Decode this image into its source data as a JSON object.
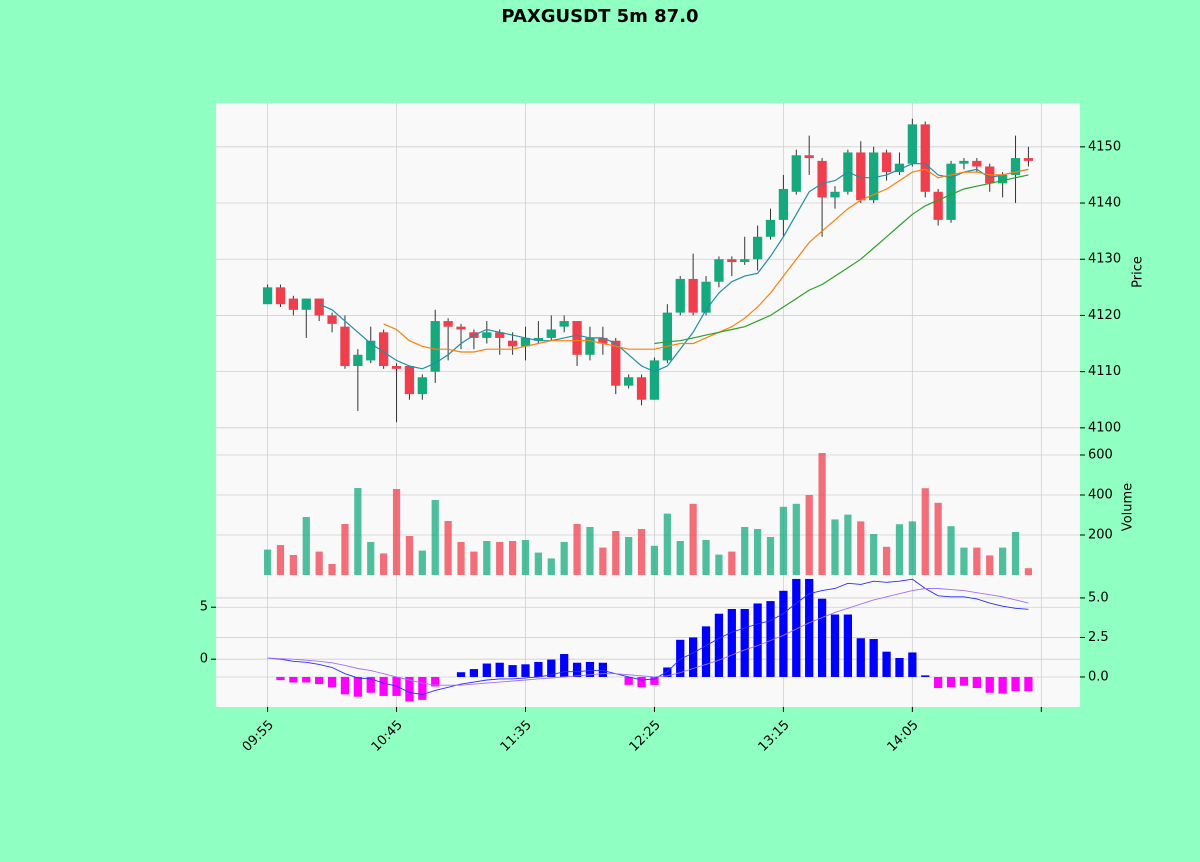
{
  "chart_data": {
    "type": "candlestick",
    "title": "PAXGUSDT 5m 87.0",
    "xlim": [
      -4,
      63
    ],
    "xticks": [
      {
        "value": 0,
        "label": "09:55"
      },
      {
        "value": 10,
        "label": "10:45"
      },
      {
        "value": 20,
        "label": "11:35"
      },
      {
        "value": 30,
        "label": "12:25"
      },
      {
        "value": 40,
        "label": "13:15"
      },
      {
        "value": 50,
        "label": "14:05"
      },
      {
        "value": 60,
        "label": null
      }
    ],
    "grid": true,
    "price": {
      "ylabel": "Price",
      "ylim": [
        4095.7,
        4157.8
      ],
      "yticks": [
        4100,
        4110,
        4120,
        4130,
        4140,
        4150
      ],
      "up_color": "#16a97d",
      "down_color": "#ef3f4d",
      "open": [
        4122,
        4125,
        4123,
        4121,
        4123,
        4120,
        4118,
        4111,
        4112,
        4117,
        4111,
        4111,
        4106,
        4110,
        4119,
        4118,
        4117,
        4116,
        4117,
        4115.5,
        4114.5,
        4115.5,
        4116,
        4118,
        4119,
        4113,
        4116,
        4115.5,
        4107.5,
        4109,
        4105,
        4112,
        4120.5,
        4126.5,
        4120.5,
        4126,
        4130,
        4129.5,
        4130,
        4134,
        4137,
        4142,
        4148.5,
        4147.5,
        4141,
        4142,
        4149,
        4140.5,
        4149,
        4145.5,
        4147,
        4154,
        4142,
        4137,
        4147,
        4147.5,
        4146.5,
        4143.5,
        4145,
        4148
      ],
      "high": [
        4125.5,
        4125.5,
        4123.5,
        4123,
        4123,
        4120.5,
        4120,
        4114,
        4118,
        4117.5,
        4111.5,
        4111,
        4109.5,
        4121,
        4119.5,
        4118.5,
        4117.5,
        4119,
        4117.5,
        4117,
        4118,
        4119,
        4120,
        4120,
        4119,
        4118,
        4118,
        4116,
        4109.5,
        4109.5,
        4112.5,
        4122,
        4127,
        4131,
        4127,
        4130.5,
        4130.5,
        4134,
        4136,
        4139,
        4145,
        4149.5,
        4152,
        4148,
        4143,
        4149.5,
        4151,
        4150,
        4149.5,
        4149,
        4155,
        4154.5,
        4142.5,
        4147.5,
        4148,
        4148,
        4147,
        4145.5,
        4152,
        4150
      ],
      "low": [
        4122,
        4121.5,
        4120,
        4116,
        4119,
        4117,
        4110.5,
        4103,
        4111.5,
        4110.5,
        4101,
        4105,
        4105,
        4108,
        4112,
        4114,
        4114,
        4115,
        4113,
        4113,
        4112,
        4115,
        4115.5,
        4117,
        4111,
        4112,
        4113,
        4106,
        4107,
        4104,
        4105,
        4111.5,
        4120,
        4120,
        4120,
        4125,
        4127,
        4129,
        4128,
        4133.5,
        4134,
        4141.5,
        4145,
        4134,
        4139,
        4141.5,
        4140,
        4140,
        4144,
        4145,
        4146.5,
        4141,
        4136,
        4136.5,
        4146,
        4145.5,
        4142,
        4141,
        4140,
        4146.5
      ],
      "close": [
        4125,
        4122,
        4121,
        4123,
        4120,
        4118.5,
        4111,
        4113,
        4115.5,
        4111,
        4110.5,
        4106,
        4109,
        4119,
        4118,
        4117.5,
        4116,
        4117,
        4116,
        4114.5,
        4116,
        4116,
        4117.5,
        4119,
        4113,
        4116,
        4115,
        4107.5,
        4109,
        4105,
        4112,
        4120.5,
        4126.5,
        4120.5,
        4126,
        4130,
        4129.5,
        4130,
        4134,
        4137,
        4142.5,
        4148.5,
        4148,
        4141,
        4142,
        4149,
        4140.5,
        4149,
        4145.5,
        4147,
        4154,
        4142,
        4137,
        4147,
        4147.5,
        4146.5,
        4143.5,
        4145,
        4148,
        4147.5
      ],
      "ma": [
        {
          "color": "#1f8fa6",
          "values": [
            null,
            null,
            null,
            null,
            4122,
            4121,
            4119,
            4117,
            4115,
            4113.5,
            4112,
            4111,
            4110.5,
            4111.5,
            4113,
            4115,
            4116.5,
            4117.5,
            4117,
            4116.5,
            4116,
            4115.5,
            4115.5,
            4116,
            4116.5,
            4116,
            4116,
            4115,
            4113,
            4111,
            4110,
            4111,
            4114,
            4117,
            4121,
            4124,
            4126,
            4127,
            4127.5,
            4130.5,
            4134,
            4138,
            4142,
            4143.5,
            4144,
            4145.5,
            4144.5,
            4144.5,
            4145,
            4146,
            4147,
            4147,
            4145,
            4144.5,
            4145.5,
            4146,
            4144.5,
            4145,
            4145.5,
            4146
          ]
        },
        {
          "color": "#ff7f0e",
          "values": [
            null,
            null,
            null,
            null,
            null,
            null,
            null,
            null,
            null,
            4118.5,
            4117.5,
            4115.5,
            4114.5,
            4114,
            4114,
            4113.5,
            4113.5,
            4114,
            4114,
            4114,
            4114.5,
            4115,
            4115.5,
            4115.5,
            4115.5,
            4115.5,
            4115,
            4114.5,
            4114,
            4114,
            4114,
            4114.5,
            4115,
            4115,
            4116,
            4117,
            4118,
            4119.5,
            4121.5,
            4124,
            4127,
            4130,
            4133,
            4135,
            4137,
            4139,
            4140.5,
            4141.5,
            4142.5,
            4144,
            4145.5,
            4146,
            4144.5,
            4145,
            4145.5,
            4145.5,
            4145,
            4145,
            4145.5,
            4146
          ]
        },
        {
          "color": "#2ca02c",
          "values": [
            null,
            null,
            null,
            null,
            null,
            null,
            null,
            null,
            null,
            null,
            null,
            null,
            null,
            null,
            null,
            null,
            null,
            null,
            null,
            null,
            null,
            null,
            null,
            null,
            null,
            null,
            null,
            null,
            null,
            null,
            4115,
            4115.3,
            4115.5,
            4116,
            4116.5,
            4117,
            4117.5,
            4118,
            4119,
            4120,
            4121.5,
            4123,
            4124.5,
            4125.5,
            4127,
            4128.5,
            4130,
            4132,
            4134,
            4136,
            4138,
            4139.5,
            4140.5,
            4141.5,
            4142.5,
            4143,
            4143.5,
            4144,
            4144.5,
            4145
          ]
        }
      ]
    },
    "volume": {
      "ylabel": "Volume",
      "ylim": [
        0,
        615
      ],
      "yticks": [
        200,
        400,
        600
      ],
      "values": [
        127,
        150,
        100,
        290,
        117,
        55,
        255,
        435,
        165,
        108,
        430,
        195,
        122,
        375,
        270,
        165,
        117,
        170,
        165,
        170,
        175,
        112,
        83,
        165,
        255,
        240,
        137,
        220,
        190,
        230,
        146,
        307,
        170,
        356,
        175,
        102,
        117,
        240,
        230,
        190,
        341,
        356,
        400,
        610,
        278,
        302,
        268,
        205,
        141,
        254,
        268,
        434,
        361,
        244,
        137,
        137,
        98,
        137,
        215,
        34
      ]
    },
    "macd": {
      "ylim": [
        -4.6,
        8.1
      ],
      "yticks": [
        0,
        5
      ],
      "y2lim": [
        -1.9,
        6.45
      ],
      "y2ticks": [
        {
          "value": 0,
          "label": "0.0"
        },
        2.5,
        {
          "value": 5,
          "label": "5.0"
        }
      ],
      "hist_up_color": "#0000ff",
      "hist_down_color": "#ff00ff",
      "hist": [
        0,
        -0.2,
        -0.35,
        -0.35,
        -0.45,
        -0.65,
        -1.1,
        -1.25,
        -1.0,
        -1.2,
        -1.2,
        -1.55,
        -1.45,
        -0.6,
        0,
        0.3,
        0.5,
        0.85,
        0.9,
        0.75,
        0.8,
        0.95,
        1.1,
        1.45,
        0.9,
        0.95,
        0.9,
        0,
        -0.5,
        -0.65,
        -0.5,
        0.6,
        2.35,
        2.5,
        3.2,
        4.0,
        4.3,
        4.3,
        4.65,
        4.8,
        5.45,
        6.2,
        6.2,
        4.95,
        3.95,
        3.95,
        2.45,
        2.4,
        1.6,
        1.2,
        1.55,
        0.1,
        -0.7,
        -0.65,
        -0.55,
        -0.7,
        -1.0,
        -1.05,
        -0.9,
        -0.9
      ],
      "lines": [
        {
          "color": "#2b2bff",
          "values": [
            0.1,
            0.0,
            -0.2,
            -0.3,
            -0.5,
            -0.8,
            -1.4,
            -1.8,
            -1.9,
            -2.3,
            -2.6,
            -3.2,
            -3.4,
            -3.0,
            -2.7,
            -2.4,
            -2.2,
            -2.0,
            -1.9,
            -1.9,
            -1.8,
            -1.7,
            -1.5,
            -1.2,
            -1.2,
            -1.1,
            -1.1,
            -1.4,
            -1.7,
            -2.0,
            -1.9,
            -1.2,
            0.0,
            0.6,
            1.3,
            2.0,
            2.6,
            3.0,
            3.4,
            3.7,
            4.4,
            5.4,
            6.3,
            6.6,
            6.8,
            7.3,
            7.2,
            7.5,
            7.4,
            7.5,
            7.7,
            6.8,
            6.1,
            6.0,
            6.0,
            5.8,
            5.4,
            5.1,
            4.9,
            4.8
          ]
        },
        {
          "color": "#a070ff",
          "values": [
            0.1,
            0.05,
            0.0,
            -0.1,
            -0.2,
            -0.35,
            -0.6,
            -0.9,
            -1.1,
            -1.4,
            -1.7,
            -2.0,
            -2.3,
            -2.5,
            -2.5,
            -2.5,
            -2.4,
            -2.3,
            -2.2,
            -2.1,
            -2.0,
            -1.9,
            -1.8,
            -1.7,
            -1.6,
            -1.5,
            -1.4,
            -1.4,
            -1.5,
            -1.6,
            -1.7,
            -1.6,
            -1.3,
            -0.9,
            -0.5,
            -0.1,
            0.4,
            0.9,
            1.3,
            1.8,
            2.3,
            2.9,
            3.5,
            4.0,
            4.5,
            4.9,
            5.3,
            5.7,
            6.0,
            6.3,
            6.6,
            6.8,
            6.8,
            6.7,
            6.6,
            6.4,
            6.2,
            6.0,
            5.7,
            5.4
          ]
        }
      ]
    }
  }
}
